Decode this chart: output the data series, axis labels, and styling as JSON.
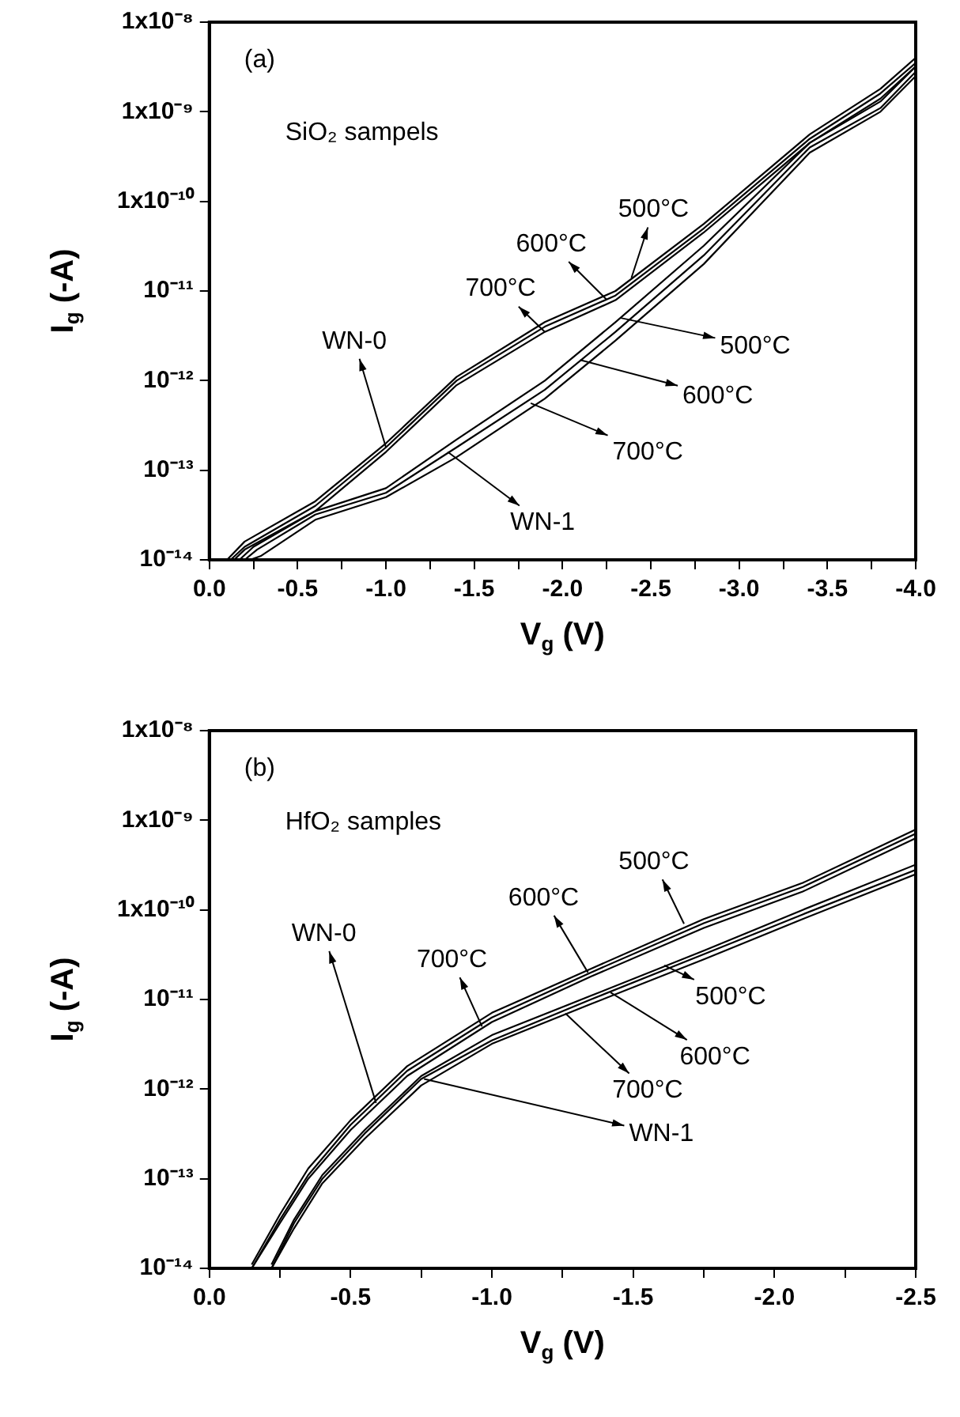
{
  "chart_data": [
    {
      "type": "line",
      "xlabel": "V$_{g}$ (V)",
      "ylabel": "I$_{g}$ (-A)",
      "log": "y",
      "grid": false,
      "legend": false,
      "marker": "none",
      "line_style": "solid",
      "xlim": [
        0,
        -4
      ],
      "xticks": [
        {
          "value": 0,
          "label": "0.0"
        },
        {
          "value": -0.25,
          "label": null
        },
        {
          "value": -0.5,
          "label": "-0.5"
        },
        {
          "value": -0.75,
          "label": null
        },
        {
          "value": -1,
          "label": "-1.0"
        },
        {
          "value": -1.25,
          "label": null
        },
        {
          "value": -1.5,
          "label": "-1.5"
        },
        {
          "value": -1.75,
          "label": null
        },
        {
          "value": -2,
          "label": "-2.0"
        },
        {
          "value": -2.25,
          "label": null
        },
        {
          "value": -2.5,
          "label": "-2.5"
        },
        {
          "value": -2.75,
          "label": null
        },
        {
          "value": -3,
          "label": "-3.0"
        },
        {
          "value": -3.25,
          "label": null
        },
        {
          "value": -3.5,
          "label": "-3.5"
        },
        {
          "value": -3.75,
          "label": null
        },
        {
          "value": -4,
          "label": "-4.0"
        }
      ],
      "ylim": [
        1e-14,
        1e-08
      ],
      "yticks": [
        {
          "value": 1e-14,
          "label": "10⁻¹⁴"
        },
        {
          "value": 1e-13,
          "label": "10⁻¹³"
        },
        {
          "value": 1e-12,
          "label": "10⁻¹²"
        },
        {
          "value": 1e-11,
          "label": "10⁻¹¹"
        },
        {
          "value": 1e-10,
          "label": "1x10⁻¹⁰"
        },
        {
          "value": 1e-09,
          "label": "1x10⁻⁹"
        },
        {
          "value": 1e-08,
          "label": "1x10⁻⁸"
        }
      ],
      "series": [
        {
          "color": "#000000",
          "x": [
            -0.1,
            -0.2,
            -0.6,
            -1.0,
            -1.4,
            -1.9,
            -2.3,
            -2.8,
            -3.4,
            -3.8,
            -4.0
          ],
          "values": [
            1e-14,
            1.6e-14,
            4.5e-14,
            2e-13,
            1.1e-12,
            4.5e-12,
            1e-11,
            5.6e-11,
            5.6e-10,
            1.8e-09,
            4e-09
          ]
        },
        {
          "color": "#000000",
          "x": [
            -0.12,
            -0.2,
            -0.6,
            -1.0,
            -1.4,
            -1.9,
            -2.3,
            -2.8,
            -3.4,
            -3.8,
            -4.0
          ],
          "values": [
            1e-14,
            1.4e-14,
            4e-14,
            1.8e-13,
            1e-12,
            4e-12,
            8.9e-12,
            5e-11,
            5e-10,
            1.6e-09,
            3.5e-09
          ]
        },
        {
          "color": "#000000",
          "x": [
            -0.14,
            -0.2,
            -0.6,
            -1.0,
            -1.4,
            -1.9,
            -2.3,
            -2.8,
            -3.4,
            -3.8,
            -4.0
          ],
          "values": [
            1e-14,
            1.3e-14,
            3.5e-14,
            1.6e-13,
            8.9e-13,
            3.5e-12,
            7.9e-12,
            4.5e-11,
            4.5e-10,
            1.4e-09,
            3.2e-09
          ]
        },
        {
          "color": "#000000",
          "x": [
            -0.17,
            -0.25,
            -0.6,
            -1.0,
            -1.4,
            -1.9,
            -2.3,
            -2.8,
            -3.4,
            -3.8,
            -4.0
          ],
          "values": [
            1e-14,
            1.4e-14,
            3.5e-14,
            6.3e-14,
            2.2e-13,
            1e-12,
            4.5e-12,
            3.2e-11,
            4.5e-10,
            1.3e-09,
            3.2e-09
          ]
        },
        {
          "color": "#000000",
          "x": [
            -0.2,
            -0.27,
            -0.6,
            -1.0,
            -1.4,
            -1.9,
            -2.3,
            -2.8,
            -3.4,
            -3.8,
            -4.0
          ],
          "values": [
            1e-14,
            1.3e-14,
            3.2e-14,
            5.6e-14,
            1.8e-13,
            7.9e-13,
            3.5e-12,
            2.5e-11,
            4e-10,
            1.1e-09,
            2.8e-09
          ]
        },
        {
          "color": "#000000",
          "x": [
            -0.23,
            -0.29,
            -0.6,
            -1.0,
            -1.4,
            -1.9,
            -2.3,
            -2.8,
            -3.4,
            -3.8,
            -4.0
          ],
          "values": [
            1e-14,
            1.1e-14,
            2.8e-14,
            5e-14,
            1.4e-13,
            6.3e-13,
            2.8e-12,
            2e-11,
            3.5e-10,
            1e-09,
            2.5e-09
          ]
        }
      ],
      "annotations": [
        "(a)",
        "SiO₂ sampels",
        {
          "text": "500°C",
          "x": -2.39,
          "y": 1.4e-11
        },
        {
          "text": "600°C",
          "x": -2.25,
          "y": 8e-12
        },
        {
          "text": "700°C",
          "x": -1.9,
          "y": 3.5e-12
        },
        {
          "text": "500°C",
          "x": -2.33,
          "y": 5e-12
        },
        {
          "text": "600°C",
          "x": -2.1,
          "y": 1.7e-12
        },
        {
          "text": "700°C",
          "x": -1.82,
          "y": 5.6e-13
        },
        {
          "text": "WN-0",
          "x": -1.0,
          "y": 1.8e-13
        },
        {
          "text": "WN-1",
          "x": -1.35,
          "y": 1.6e-13
        }
      ]
    },
    {
      "type": "line",
      "xlabel": "V$_{g}$ (V)",
      "ylabel": "I$_{g}$ (-A)",
      "log": "y",
      "grid": false,
      "legend": false,
      "marker": "none",
      "line_style": "solid",
      "xlim": [
        0,
        -2.5
      ],
      "xticks": [
        {
          "value": 0,
          "label": "0.0"
        },
        {
          "value": -0.25,
          "label": null
        },
        {
          "value": -0.5,
          "label": "-0.5"
        },
        {
          "value": -0.75,
          "label": null
        },
        {
          "value": -1,
          "label": "-1.0"
        },
        {
          "value": -1.25,
          "label": null
        },
        {
          "value": -1.5,
          "label": "-1.5"
        },
        {
          "value": -1.75,
          "label": null
        },
        {
          "value": -2,
          "label": "-2.0"
        },
        {
          "value": -2.25,
          "label": null
        },
        {
          "value": -2.5,
          "label": "-2.5"
        }
      ],
      "ylim": [
        1e-14,
        1e-08
      ],
      "yticks": [
        {
          "value": 1e-14,
          "label": "10⁻¹⁴"
        },
        {
          "value": 1e-13,
          "label": "10⁻¹³"
        },
        {
          "value": 1e-12,
          "label": "10⁻¹²"
        },
        {
          "value": 1e-11,
          "label": "10⁻¹¹"
        },
        {
          "value": 1e-10,
          "label": "1x10⁻¹⁰"
        },
        {
          "value": 1e-09,
          "label": "1x10⁻⁹"
        },
        {
          "value": 1e-08,
          "label": "1x10⁻⁸"
        }
      ],
      "series": [
        {
          "color": "#000000",
          "x": [
            -0.15,
            -0.25,
            -0.35,
            -0.5,
            -0.7,
            -1.0,
            -1.35,
            -1.75,
            -2.1,
            -2.5
          ],
          "values": [
            1.1e-14,
            4e-14,
            1.3e-13,
            4.5e-13,
            1.8e-12,
            7.1e-12,
            2.2e-11,
            7.9e-11,
            2e-10,
            7.9e-10
          ]
        },
        {
          "color": "#000000",
          "x": [
            -0.15,
            -0.25,
            -0.35,
            -0.5,
            -0.7,
            -1.0,
            -1.35,
            -1.75,
            -2.1,
            -2.5
          ],
          "values": [
            1e-14,
            3.5e-14,
            1.1e-13,
            4e-13,
            1.6e-12,
            6.3e-12,
            2e-11,
            7.1e-11,
            1.8e-10,
            7.1e-10
          ]
        },
        {
          "color": "#000000",
          "x": [
            -0.15,
            -0.25,
            -0.35,
            -0.5,
            -0.7,
            -1.0,
            -1.35,
            -1.75,
            -2.1,
            -2.5
          ],
          "values": [
            1e-14,
            3.2e-14,
            1e-13,
            3.5e-13,
            1.4e-12,
            5.6e-12,
            1.8e-11,
            6.3e-11,
            1.6e-10,
            6.3e-10
          ]
        },
        {
          "color": "#000000",
          "x": [
            -0.22,
            -0.3,
            -0.4,
            -0.55,
            -0.75,
            -1.0,
            -1.35,
            -1.75,
            -2.1,
            -2.5
          ],
          "values": [
            1.1e-14,
            3.5e-14,
            1.1e-13,
            3.5e-13,
            1.4e-12,
            4e-12,
            1.1e-11,
            3.5e-11,
            1e-10,
            3.2e-10
          ]
        },
        {
          "color": "#000000",
          "x": [
            -0.22,
            -0.3,
            -0.4,
            -0.55,
            -0.75,
            -1.0,
            -1.35,
            -1.75,
            -2.1,
            -2.5
          ],
          "values": [
            1e-14,
            3.2e-14,
            1e-13,
            3.2e-13,
            1.3e-12,
            3.5e-12,
            1e-11,
            3.2e-11,
            8.9e-11,
            2.8e-10
          ]
        },
        {
          "color": "#000000",
          "x": [
            -0.22,
            -0.3,
            -0.4,
            -0.55,
            -0.75,
            -1.0,
            -1.35,
            -1.75,
            -2.1,
            -2.5
          ],
          "values": [
            1e-14,
            2.8e-14,
            8.9e-14,
            2.8e-13,
            1.1e-12,
            3.2e-12,
            8.9e-12,
            2.8e-11,
            7.9e-11,
            2.5e-10
          ]
        }
      ],
      "annotations": [
        "(b)",
        "HfO₂ samples",
        {
          "text": "500°C",
          "x": -1.68,
          "y": 7e-11
        },
        {
          "text": "600°C",
          "x": -1.34,
          "y": 2e-11
        },
        {
          "text": "700°C",
          "x": -0.965,
          "y": 5e-12
        },
        {
          "text": "500°C",
          "x": -1.61,
          "y": 2.4e-11
        },
        {
          "text": "600°C",
          "x": -1.42,
          "y": 1.2e-11
        },
        {
          "text": "700°C",
          "x": -1.26,
          "y": 7e-12
        },
        {
          "text": "WN-0",
          "x": -0.59,
          "y": 7e-13
        },
        {
          "text": "WN-1",
          "x": -0.76,
          "y": 1.3e-12
        }
      ]
    }
  ]
}
